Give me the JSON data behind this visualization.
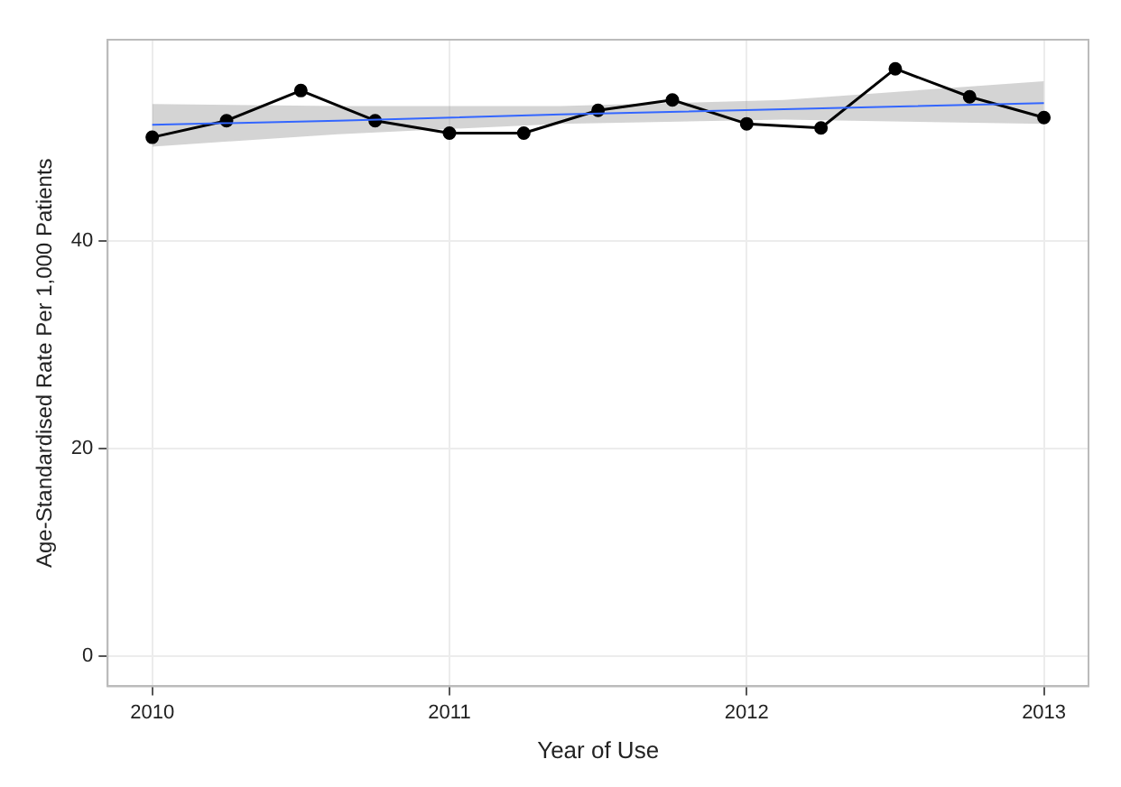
{
  "chart_data": {
    "type": "line",
    "xlabel": "Year of Use",
    "ylabel": "Age-Standardised Rate Per 1,000 Patients",
    "xlim": [
      2009.85,
      2013.15
    ],
    "ylim": [
      -2.9,
      59.4
    ],
    "xticks": [
      2010,
      2011,
      2012,
      2013
    ],
    "yticks": [
      0,
      20,
      40
    ],
    "grid": true,
    "legend": false,
    "series": [
      {
        "color": "#000000",
        "marker": "circle",
        "x": [
          2010,
          2010.25,
          2010.5,
          2010.75,
          2011,
          2011.25,
          2011.5,
          2011.75,
          2012,
          2012.25,
          2012.5,
          2012.75,
          2013
        ],
        "values": [
          50.0,
          51.6,
          54.5,
          51.6,
          50.4,
          50.4,
          52.6,
          53.6,
          51.3,
          50.9,
          56.6,
          53.9,
          51.9
        ]
      },
      {
        "color": "#3366ff",
        "marker": "none",
        "x": [
          2010,
          2010.625,
          2011.375,
          2012.125,
          2013
        ],
        "values": [
          51.2,
          51.6,
          52.2,
          52.7,
          53.3
        ],
        "lower": [
          49.1,
          50.3,
          51.3,
          51.7,
          51.3
        ],
        "upper": [
          53.2,
          53.0,
          53.0,
          53.6,
          55.4
        ]
      }
    ]
  }
}
